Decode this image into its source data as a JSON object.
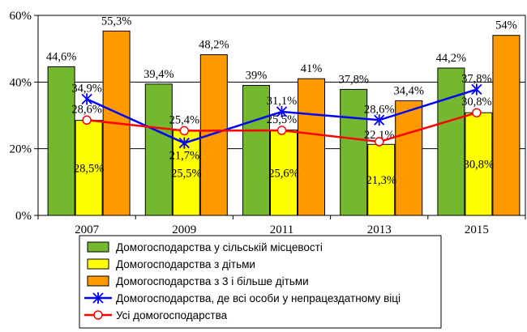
{
  "chart_data": {
    "type": "bar",
    "title": "",
    "xlabel": "",
    "ylabel": "",
    "ylim": [
      0,
      60
    ],
    "yticks": [
      "0%",
      "20%",
      "40%",
      "60%"
    ],
    "categories": [
      "2007",
      "2009",
      "2011",
      "2013",
      "2015"
    ],
    "series": [
      {
        "name": "Домогосподарства у сільській місцевості",
        "kind": "bar",
        "color": "#74b830",
        "values": [
          44.6,
          39.4,
          39,
          37.8,
          44.2
        ],
        "labels": [
          "44,6%",
          "39,4%",
          "39%",
          "37,8%",
          "44,2%"
        ]
      },
      {
        "name": "Домогосподарства з дітьми",
        "kind": "bar",
        "color": "#ffff00",
        "values": [
          28.5,
          25.5,
          25.6,
          21.3,
          30.8
        ],
        "labels": [
          "28,5%",
          "25,5%",
          "25,6%",
          "21,3%",
          "30,8%"
        ]
      },
      {
        "name": "Домогосподарства з 3 і більше дітьми",
        "kind": "bar",
        "color": "#ff9900",
        "values": [
          55.3,
          48.2,
          41,
          34.4,
          54
        ],
        "labels": [
          "55,3%",
          "48,2%",
          "41%",
          "34,4%",
          "54%"
        ]
      },
      {
        "name": "Домогосподарства, де всі особи у непрацездатному віці",
        "kind": "line",
        "marker": "star",
        "color": "#0000ff",
        "values": [
          34.9,
          21.7,
          31.1,
          28.6,
          37.8
        ],
        "labels": [
          "34,9%",
          "21,7%",
          "31,1%",
          "28,6%",
          "37,8%"
        ]
      },
      {
        "name": "Усі домогосподарства",
        "kind": "line",
        "marker": "circle",
        "color": "#ff0000",
        "values": [
          28.6,
          25.4,
          25.5,
          22.1,
          30.8
        ],
        "labels": [
          "28,6%",
          "25,4%",
          "25,5%",
          "22,1%",
          "30,8%"
        ]
      }
    ],
    "legend_position": "bottom"
  }
}
